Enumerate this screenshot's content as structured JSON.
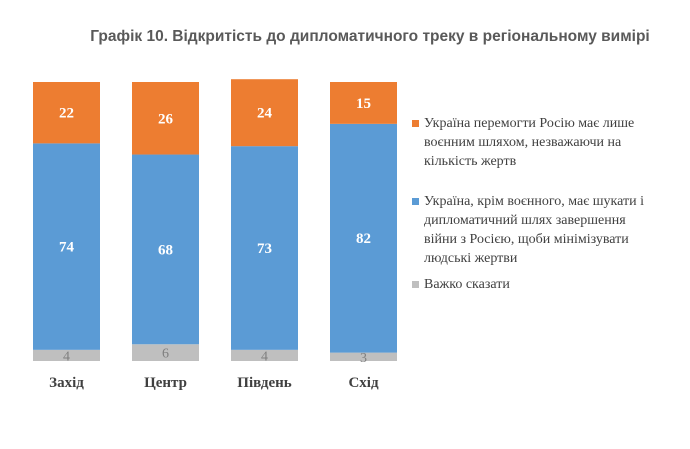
{
  "chart_data": {
    "type": "bar",
    "stacked": true,
    "title": "Графік 10. Відкритість до дипломатичного треку в регіональному вимірі",
    "categories": [
      "Захід",
      "Центр",
      "Південь",
      "Схід"
    ],
    "series": [
      {
        "name": "Важко сказати",
        "values": [
          4,
          6,
          4,
          3
        ],
        "color": "#BFBFBF",
        "label_color": "#7f7f7f"
      },
      {
        "name": "Україна, крім воєнного, має шукати і дипломатичний шлях завершення війни з Росією, щоби мінімізувати людські жертви",
        "values": [
          74,
          68,
          73,
          82
        ],
        "color": "#5B9BD5",
        "label_color": "#ffffff"
      },
      {
        "name": "Україна перемогти Росію має лише воєнним шляхом, незважаючи на кількість жертв",
        "values": [
          22,
          26,
          24,
          15
        ],
        "color": "#ED7D31",
        "label_color": "#ffffff"
      }
    ],
    "legend_order": [
      2,
      1,
      0
    ],
    "ylim": [
      0,
      100
    ],
    "legend_position": "right"
  }
}
